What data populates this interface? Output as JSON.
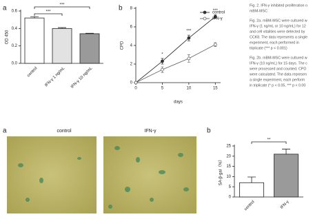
{
  "chart_data": [
    {
      "type": "bar",
      "ylabel": "OD 450",
      "categories": [
        "control",
        "IFN-γ 1 ng/mL",
        "IFN-γ 10 ng/mL"
      ],
      "values": [
        0.52,
        0.4,
        0.34
      ],
      "errors": [
        0.015,
        0.01,
        0.005
      ],
      "colors": [
        "#ffffff",
        "#e2e2e2",
        "#9a9a9a"
      ],
      "ylim": [
        0,
        0.6
      ],
      "yticks": [
        {
          "value": 0,
          "label": "0.0"
        },
        {
          "value": 0.2,
          "label": "0.2"
        },
        {
          "value": 0.4,
          "label": "0.4"
        },
        {
          "value": 0.6,
          "label": "0.6"
        }
      ],
      "annotations": [
        "***",
        "***"
      ]
    },
    {
      "type": "line",
      "xlabel": "days",
      "ylabel": "CPD",
      "x": [
        0,
        5,
        10,
        15
      ],
      "xlim": [
        0,
        16
      ],
      "xticks": [
        0,
        5,
        10,
        15
      ],
      "ylim": [
        0,
        8
      ],
      "yticks": [
        0,
        2,
        4,
        6,
        8
      ],
      "series": [
        {
          "name": "control",
          "color": "#333333",
          "values": [
            0,
            2.3,
            4.8,
            7.1
          ],
          "errors": [
            0,
            0.3,
            0.3,
            0.2
          ]
        },
        {
          "name": "IFN-γ",
          "color": "#666666",
          "values": [
            0,
            1.4,
            2.6,
            4.1
          ],
          "errors": [
            0,
            0.3,
            0.4,
            0.2
          ]
        }
      ],
      "annotations": [
        "*",
        "***",
        "***"
      ]
    },
    {
      "type": "bar",
      "ylabel": "SA-β-gal（%）",
      "categories": [
        "control",
        "IFN-γ"
      ],
      "values": [
        7,
        21
      ],
      "errors": [
        2.8,
        2.5
      ],
      "colors": [
        "#ffffff",
        "#9a9a9a"
      ],
      "ylim": [
        0,
        25
      ],
      "yticks": [
        0,
        5,
        10,
        15,
        20,
        25
      ],
      "annotations": [
        "**"
      ]
    }
  ],
  "panels": [
    "a",
    "b",
    "a",
    "b"
  ],
  "images": {
    "labels": [
      "control",
      "IFN-γ"
    ]
  },
  "caption": {
    "lines": [
      "Fig. 2. IFN-γ inhibited proliferation o",
      "mBM-MSC",
      "Fig. 2a. mBM-MSC were cultured w",
      "IFN-γ (1 ng/mL or 10 ng/mL) for 12",
      "and cell vitalities were detected by",
      "CCK8. The data represents a single",
      "experiment, each performed in",
      "triplicate (*** p < 0.001)",
      "Fig. 2b. mBM-MSC were cultured w",
      "IFN-γ (10 ng/mL) for 15 days. The c",
      "were processed and counted. CPD",
      "were calculated. The data represen",
      "a single experiment, each perform",
      "in triplicate (* p < 0.05, *** p < 0.00"
    ]
  }
}
